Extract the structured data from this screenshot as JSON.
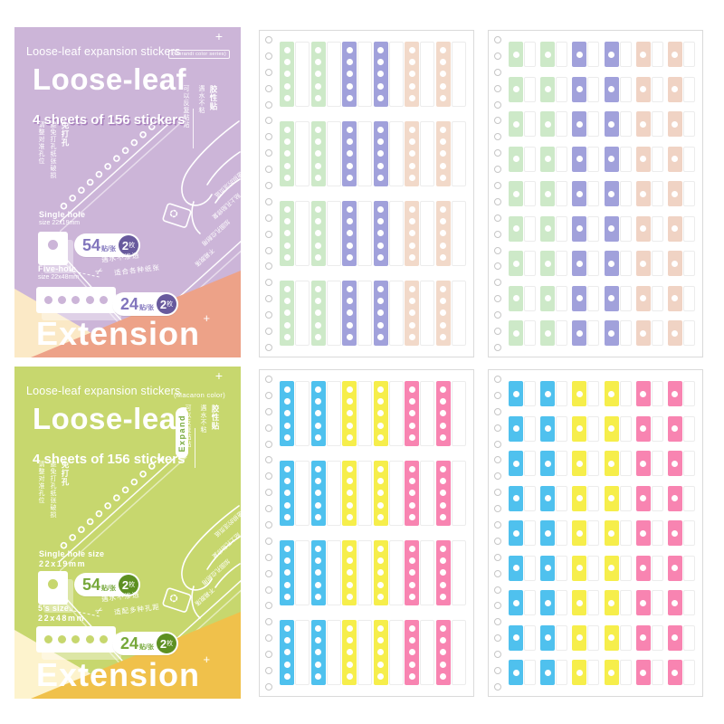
{
  "cards": {
    "purple": {
      "tagline": "Loose-leaf expansion stickers",
      "series_badge": "(Morandi color series)",
      "plus": "+",
      "title": "Loose-leaf",
      "subtitle": "4 sheets of 156 stickers",
      "right_note": {
        "highlight": "胶性贴",
        "lines": [
          "遇水不粘",
          "可以反复粘贴"
        ]
      },
      "left_note": {
        "highlight": "免打孔",
        "lines": [
          "避免打孔纸张破损",
          "请整对准孔位"
        ]
      },
      "single": {
        "label": "Single hole",
        "size": "size 22x19mm",
        "count": "54",
        "unit": "贴/张",
        "qty": "2",
        "qty_unit": "枚"
      },
      "five": {
        "label": "Five-hole",
        "size": "size 22x48mm",
        "count": "24",
        "unit": "贴/张",
        "qty": "2",
        "qty_unit": "枚"
      },
      "scribbles": [
        "遇水不渗透",
        "适合各种纸张"
      ],
      "notebook_lines": [
        "破损的活页纸",
        "贴上孔贴修复",
        "加固孔位耐用",
        "不易脱落"
      ],
      "scissors": "✂",
      "extension": "Extension",
      "colors": {
        "bg": "#ccb5d8",
        "accent": "#8175bd",
        "accent_dark": "#685a9d",
        "tri_left": "#fbe9c6",
        "tri_right": "#eda288"
      }
    },
    "green": {
      "tagline": "Loose-leaf expansion stickers",
      "series_badge": "(Macaron color)",
      "plus": "+",
      "title": "Loose-leaf",
      "subtitle": "4 sheets of 156 stickers",
      "expand_pill": "Expand",
      "right_note": {
        "highlight": "胶性贴",
        "lines": [
          "遇水不粘",
          "可以反复粘贴"
        ]
      },
      "left_note": {
        "highlight": "免打孔",
        "lines": [
          "避免打孔纸张破损",
          "请整对准孔位"
        ]
      },
      "single": {
        "label": "Single hole size",
        "size": "22x19mm",
        "count": "54",
        "unit": "贴/张",
        "qty": "2",
        "qty_unit": "枚"
      },
      "five": {
        "label": "5's size",
        "size": "22x48mm",
        "count": "24",
        "unit": "贴/张",
        "qty": "2",
        "qty_unit": "枚"
      },
      "scribbles": [
        "遇水不渗透",
        "适配多种孔距"
      ],
      "notebook_lines": [
        "破损的活页纸",
        "贴上孔贴修复",
        "加固孔位耐用",
        "不易脱落"
      ],
      "scissors": "✂",
      "extension": "Extension",
      "colors": {
        "bg": "#c7d76e",
        "accent": "#76a83a",
        "accent_dark": "#5d9022",
        "tri_left": "#fdf3cd",
        "tri_right": "#f0c14b"
      }
    }
  },
  "sheets": {
    "binder_hole_count": 20,
    "pastel_strips": {
      "type": "strip",
      "rows": 4,
      "cols": 6,
      "holes": 5,
      "colors": [
        "#cde9c8",
        "#cde9c8",
        "#a1a1db",
        "#a1a1db",
        "#f2d9c9",
        "#f2d9c9"
      ]
    },
    "pastel_singles": {
      "type": "single",
      "rows": 9,
      "cols": 6,
      "holes": 1,
      "colors": [
        "#cde9c8",
        "#cde9c8",
        "#a1a1db",
        "#a1a1db",
        "#f0d3c4",
        "#f0d3c4"
      ]
    },
    "bright_strips": {
      "type": "strip",
      "rows": 4,
      "cols": 6,
      "holes": 5,
      "colors": [
        "#4fc1ee",
        "#4fc1ee",
        "#f6ee4b",
        "#f6ee4b",
        "#f884b1",
        "#f884b1"
      ]
    },
    "bright_singles": {
      "type": "single",
      "rows": 9,
      "cols": 6,
      "holes": 1,
      "colors": [
        "#4fc1ee",
        "#4fc1ee",
        "#f6ee4b",
        "#f6ee4b",
        "#f884b1",
        "#f884b1"
      ]
    }
  }
}
